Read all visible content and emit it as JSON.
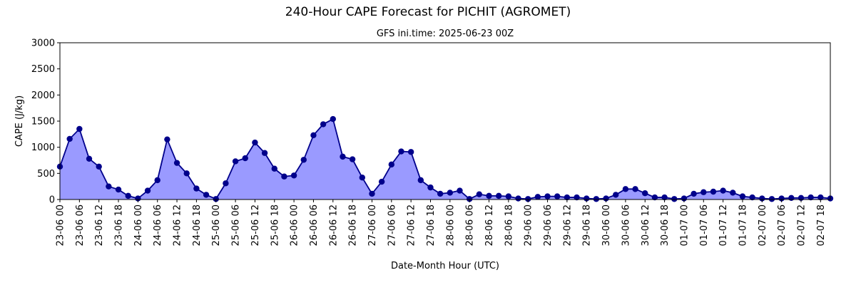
{
  "chart_data": {
    "type": "area",
    "title": "240-Hour CAPE Forecast for PICHIT (AGROMET)",
    "subtitle": "GFS ini.time: 2025-06-23 00Z",
    "xlabel": "Date-Month Hour (UTC)",
    "ylabel": "CAPE (J/kg)",
    "ylim": [
      0,
      3000
    ],
    "yticks": [
      0,
      500,
      1000,
      1500,
      2000,
      2500,
      3000
    ],
    "x_start": "23-06 00",
    "x_step_hours": 3,
    "xticks": [
      "23-06 00",
      "23-06 06",
      "23-06 12",
      "23-06 18",
      "24-06 00",
      "24-06 06",
      "24-06 12",
      "24-06 18",
      "25-06 00",
      "25-06 06",
      "25-06 12",
      "25-06 18",
      "26-06 00",
      "26-06 06",
      "26-06 12",
      "26-06 18",
      "27-06 00",
      "27-06 06",
      "27-06 12",
      "27-06 18",
      "28-06 00",
      "28-06 06",
      "28-06 12",
      "28-06 18",
      "29-06 00",
      "29-06 06",
      "29-06 12",
      "29-06 18",
      "30-06 00",
      "30-06 06",
      "30-06 12",
      "30-06 18",
      "01-07 00",
      "01-07 06",
      "01-07 12",
      "01-07 18",
      "02-07 00",
      "02-07 06",
      "02-07 12",
      "02-07 18"
    ],
    "grid": false,
    "series": [
      {
        "values": [
          630,
          1160,
          1350,
          780,
          630,
          250,
          190,
          70,
          20,
          170,
          370,
          1150,
          700,
          500,
          210,
          90,
          10,
          310,
          730,
          790,
          1090,
          890,
          590,
          440,
          460,
          760,
          1230,
          1440,
          1540,
          820,
          770,
          420,
          110,
          340,
          670,
          920,
          910,
          370,
          230,
          110,
          130,
          170,
          10,
          100,
          70,
          70,
          60,
          20,
          10,
          50,
          60,
          60,
          40,
          40,
          20,
          10,
          20,
          90,
          200,
          200,
          120,
          40,
          40,
          10,
          20,
          110,
          140,
          150,
          170,
          130,
          60,
          40,
          20,
          10,
          20,
          30,
          30,
          40,
          40,
          20
        ],
        "line_color": "#00008b",
        "fill_color": "#9a9aff",
        "marker_color": "#00008b"
      }
    ]
  }
}
